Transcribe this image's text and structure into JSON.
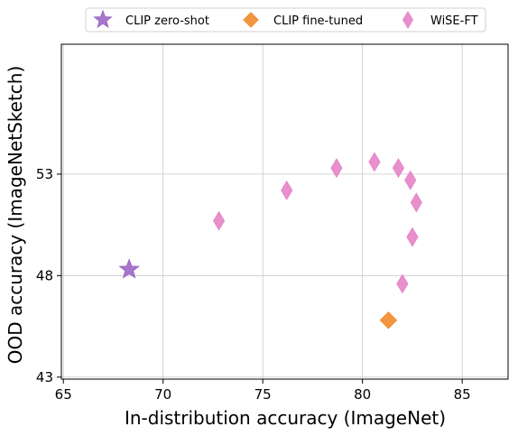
{
  "chart_data": {
    "type": "scatter",
    "xlabel": "In-distribution accuracy (ImageNet)",
    "ylabel": "OOD accuracy (ImageNetSketch)",
    "xlim": [
      64.9,
      87.3
    ],
    "ylim": [
      42.9,
      59.4
    ],
    "xticks": [
      65,
      70,
      75,
      80,
      85
    ],
    "yticks": [
      43,
      48,
      53
    ],
    "grid": true,
    "legend_position": "top-center, above plot",
    "series": [
      {
        "name": "CLIP zero-shot",
        "marker": "star",
        "color": "#9e67c5",
        "points": [
          {
            "x": 68.3,
            "y": 48.3
          }
        ]
      },
      {
        "name": "CLIP fine-tuned",
        "marker": "diamond",
        "color": "#f28b2e",
        "points": [
          {
            "x": 81.3,
            "y": 45.8
          }
        ]
      },
      {
        "name": "WiSE-FT",
        "marker": "thin_diamond",
        "color": "#e684c8",
        "points": [
          {
            "x": 72.8,
            "y": 50.7
          },
          {
            "x": 76.2,
            "y": 52.2
          },
          {
            "x": 78.7,
            "y": 53.3
          },
          {
            "x": 80.6,
            "y": 53.6
          },
          {
            "x": 81.8,
            "y": 53.3
          },
          {
            "x": 82.4,
            "y": 52.7
          },
          {
            "x": 82.7,
            "y": 51.6
          },
          {
            "x": 82.5,
            "y": 49.9
          },
          {
            "x": 82.0,
            "y": 47.6
          }
        ]
      }
    ]
  }
}
